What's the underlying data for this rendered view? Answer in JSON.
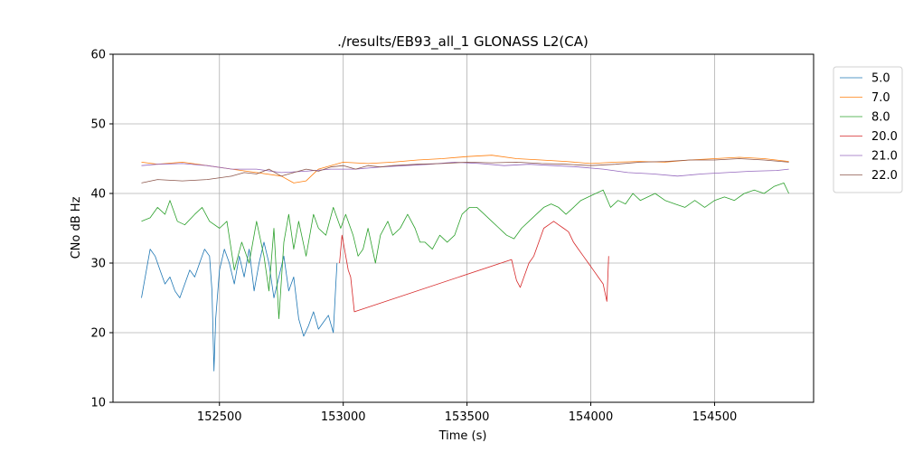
{
  "chart_data": {
    "type": "line",
    "title": "./results/EB93_all_1 GLONASS L2(CA)",
    "xlabel": "Time (s)",
    "ylabel": "CNo dB Hz",
    "xlim": [
      152070,
      154900
    ],
    "ylim": [
      10,
      60
    ],
    "xticks": [
      152500,
      153000,
      153500,
      154000,
      154500
    ],
    "yticks": [
      10,
      20,
      30,
      40,
      50,
      60
    ],
    "grid": true,
    "legend_position": "outside-right-top",
    "series": [
      {
        "name": "5.0",
        "color": "#1f77b4",
        "segments": [
          [
            [
              152185,
              25
            ],
            [
              152200,
              28
            ],
            [
              152220,
              32
            ],
            [
              152240,
              31
            ],
            [
              152260,
              29
            ],
            [
              152280,
              27
            ],
            [
              152300,
              28
            ],
            [
              152320,
              26
            ],
            [
              152340,
              25
            ],
            [
              152360,
              27
            ],
            [
              152380,
              29
            ],
            [
              152400,
              28
            ],
            [
              152420,
              30
            ],
            [
              152440,
              32
            ],
            [
              152460,
              31
            ],
            [
              152470,
              26
            ],
            [
              152478,
              14.5
            ],
            [
              152485,
              22
            ],
            [
              152500,
              29
            ],
            [
              152520,
              32
            ],
            [
              152540,
              30
            ],
            [
              152560,
              27
            ],
            [
              152580,
              31
            ],
            [
              152600,
              28
            ],
            [
              152620,
              32
            ],
            [
              152640,
              26
            ],
            [
              152660,
              30
            ],
            [
              152680,
              33
            ],
            [
              152700,
              30
            ],
            [
              152720,
              25
            ],
            [
              152740,
              28
            ],
            [
              152760,
              31
            ],
            [
              152780,
              26
            ],
            [
              152800,
              28
            ],
            [
              152820,
              22
            ],
            [
              152840,
              19.5
            ],
            [
              152860,
              21
            ],
            [
              152880,
              23
            ],
            [
              152900,
              20.5
            ],
            [
              152920,
              21.5
            ],
            [
              152940,
              22.5
            ],
            [
              152960,
              20
            ],
            [
              152970,
              27
            ],
            [
              152975,
              30
            ]
          ]
        ]
      },
      {
        "name": "7.0",
        "color": "#ff7f0e",
        "segments": [
          [
            [
              152185,
              44.5
            ],
            [
              152250,
              44.2
            ],
            [
              152350,
              44.5
            ],
            [
              152450,
              44.0
            ],
            [
              152550,
              43.5
            ],
            [
              152650,
              43.0
            ],
            [
              152750,
              42.5
            ],
            [
              152800,
              41.5
            ],
            [
              152850,
              41.8
            ],
            [
              152900,
              43.5
            ],
            [
              152950,
              44.0
            ],
            [
              153000,
              44.5
            ],
            [
              153100,
              44.3
            ],
            [
              153200,
              44.5
            ],
            [
              153300,
              44.8
            ],
            [
              153400,
              45.0
            ],
            [
              153500,
              45.3
            ],
            [
              153600,
              45.5
            ],
            [
              153700,
              45.0
            ],
            [
              153800,
              44.8
            ],
            [
              153900,
              44.6
            ],
            [
              154000,
              44.3
            ],
            [
              154100,
              44.5
            ],
            [
              154200,
              44.6
            ],
            [
              154300,
              44.5
            ],
            [
              154400,
              44.8
            ],
            [
              154500,
              45.0
            ],
            [
              154600,
              45.2
            ],
            [
              154700,
              45.0
            ],
            [
              154800,
              44.6
            ]
          ]
        ]
      },
      {
        "name": "8.0",
        "color": "#2ca02c",
        "segments": [
          [
            [
              152185,
              36
            ],
            [
              152220,
              36.5
            ],
            [
              152250,
              38
            ],
            [
              152280,
              37
            ],
            [
              152300,
              39
            ],
            [
              152330,
              36
            ],
            [
              152360,
              35.5
            ],
            [
              152400,
              37
            ],
            [
              152430,
              38
            ],
            [
              152460,
              36
            ],
            [
              152500,
              35
            ],
            [
              152530,
              36
            ],
            [
              152560,
              29
            ],
            [
              152590,
              33
            ],
            [
              152620,
              30
            ],
            [
              152650,
              36
            ],
            [
              152680,
              31
            ],
            [
              152700,
              26
            ],
            [
              152720,
              35
            ],
            [
              152740,
              22
            ],
            [
              152760,
              33
            ],
            [
              152780,
              37
            ],
            [
              152800,
              32
            ],
            [
              152820,
              36
            ],
            [
              152850,
              31
            ],
            [
              152880,
              37
            ],
            [
              152900,
              35
            ],
            [
              152930,
              34
            ],
            [
              152960,
              38
            ],
            [
              152990,
              35
            ],
            [
              153010,
              37
            ],
            [
              153040,
              34
            ],
            [
              153060,
              31
            ],
            [
              153080,
              32
            ],
            [
              153100,
              35
            ],
            [
              153130,
              30
            ],
            [
              153150,
              34
            ],
            [
              153180,
              36
            ],
            [
              153200,
              34
            ],
            [
              153230,
              35
            ],
            [
              153260,
              37
            ],
            [
              153290,
              35
            ],
            [
              153310,
              33
            ],
            [
              153330,
              33
            ],
            [
              153360,
              32
            ],
            [
              153390,
              34
            ],
            [
              153420,
              33
            ],
            [
              153450,
              34
            ],
            [
              153480,
              37
            ],
            [
              153510,
              38
            ],
            [
              153540,
              38
            ],
            [
              153570,
              37
            ],
            [
              153600,
              36
            ],
            [
              153630,
              35
            ],
            [
              153660,
              34
            ],
            [
              153690,
              33.5
            ],
            [
              153720,
              35
            ],
            [
              153750,
              36
            ],
            [
              153780,
              37
            ],
            [
              153810,
              38
            ],
            [
              153840,
              38.5
            ],
            [
              153870,
              38
            ],
            [
              153900,
              37
            ],
            [
              153930,
              38
            ],
            [
              153960,
              39
            ],
            [
              153990,
              39.5
            ],
            [
              154020,
              40
            ],
            [
              154050,
              40.5
            ],
            [
              154080,
              38
            ],
            [
              154110,
              39
            ],
            [
              154140,
              38.5
            ],
            [
              154170,
              40
            ],
            [
              154200,
              39
            ],
            [
              154230,
              39.5
            ],
            [
              154260,
              40
            ],
            [
              154300,
              39
            ],
            [
              154340,
              38.5
            ],
            [
              154380,
              38
            ],
            [
              154420,
              39
            ],
            [
              154460,
              38
            ],
            [
              154500,
              39
            ],
            [
              154540,
              39.5
            ],
            [
              154580,
              39
            ],
            [
              154620,
              40
            ],
            [
              154660,
              40.5
            ],
            [
              154700,
              40
            ],
            [
              154740,
              41
            ],
            [
              154780,
              41.5
            ],
            [
              154800,
              40
            ]
          ]
        ]
      },
      {
        "name": "20.0",
        "color": "#d62728",
        "segments": [
          [
            [
              152985,
              30
            ],
            [
              152995,
              34
            ],
            [
              153005,
              32
            ],
            [
              153020,
              29
            ],
            [
              153030,
              28
            ],
            [
              153045,
              23
            ],
            [
              153680,
              30.5
            ],
            [
              153690,
              29
            ],
            [
              153700,
              27.5
            ],
            [
              153715,
              26.5
            ],
            [
              153730,
              28
            ],
            [
              153750,
              30
            ],
            [
              153770,
              31
            ],
            [
              153790,
              33
            ],
            [
              153810,
              35
            ],
            [
              153830,
              35.5
            ],
            [
              153850,
              36
            ],
            [
              153870,
              35.5
            ],
            [
              153890,
              35
            ],
            [
              153910,
              34.5
            ],
            [
              153930,
              33
            ],
            [
              153950,
              32
            ],
            [
              153970,
              31
            ],
            [
              153990,
              30
            ],
            [
              154010,
              29
            ],
            [
              154030,
              28
            ],
            [
              154050,
              27
            ],
            [
              154065,
              24.5
            ],
            [
              154072,
              31
            ]
          ]
        ]
      },
      {
        "name": "21.0",
        "color": "#9467bd",
        "segments": [
          [
            [
              152185,
              44
            ],
            [
              152250,
              44.2
            ],
            [
              152350,
              44.3
            ],
            [
              152450,
              44.0
            ],
            [
              152550,
              43.5
            ],
            [
              152650,
              43.5
            ],
            [
              152750,
              43.0
            ],
            [
              152850,
              43.2
            ],
            [
              152950,
              43.5
            ],
            [
              153050,
              43.5
            ],
            [
              153150,
              43.8
            ],
            [
              153250,
              44.0
            ],
            [
              153350,
              44.2
            ],
            [
              153450,
              44.5
            ],
            [
              153550,
              44.3
            ],
            [
              153650,
              44.0
            ],
            [
              153750,
              44.2
            ],
            [
              153850,
              44.0
            ],
            [
              153950,
              43.8
            ],
            [
              154050,
              43.5
            ],
            [
              154150,
              43.0
            ],
            [
              154250,
              42.8
            ],
            [
              154350,
              42.5
            ],
            [
              154450,
              42.8
            ],
            [
              154550,
              43.0
            ],
            [
              154650,
              43.2
            ],
            [
              154750,
              43.3
            ],
            [
              154800,
              43.5
            ]
          ]
        ]
      },
      {
        "name": "22.0",
        "color": "#8c564b",
        "segments": [
          [
            [
              152185,
              41.5
            ],
            [
              152250,
              42
            ],
            [
              152350,
              41.8
            ],
            [
              152450,
              42
            ],
            [
              152550,
              42.5
            ],
            [
              152600,
              43
            ],
            [
              152650,
              42.8
            ],
            [
              152700,
              43.5
            ],
            [
              152750,
              42.5
            ],
            [
              152800,
              43
            ],
            [
              152850,
              43.5
            ],
            [
              152900,
              43.2
            ],
            [
              152950,
              43.8
            ],
            [
              153000,
              44
            ],
            [
              153050,
              43.5
            ],
            [
              153100,
              44
            ],
            [
              153150,
              43.8
            ],
            [
              153200,
              44
            ],
            [
              153300,
              44.2
            ],
            [
              153400,
              44.3
            ],
            [
              153500,
              44.5
            ],
            [
              153600,
              44.4
            ],
            [
              153700,
              44.5
            ],
            [
              153800,
              44.3
            ],
            [
              153900,
              44.2
            ],
            [
              154000,
              44.0
            ],
            [
              154100,
              44.2
            ],
            [
              154200,
              44.5
            ],
            [
              154300,
              44.6
            ],
            [
              154400,
              44.8
            ],
            [
              154500,
              44.8
            ],
            [
              154600,
              45.0
            ],
            [
              154700,
              44.8
            ],
            [
              154800,
              44.5
            ]
          ]
        ]
      }
    ]
  }
}
